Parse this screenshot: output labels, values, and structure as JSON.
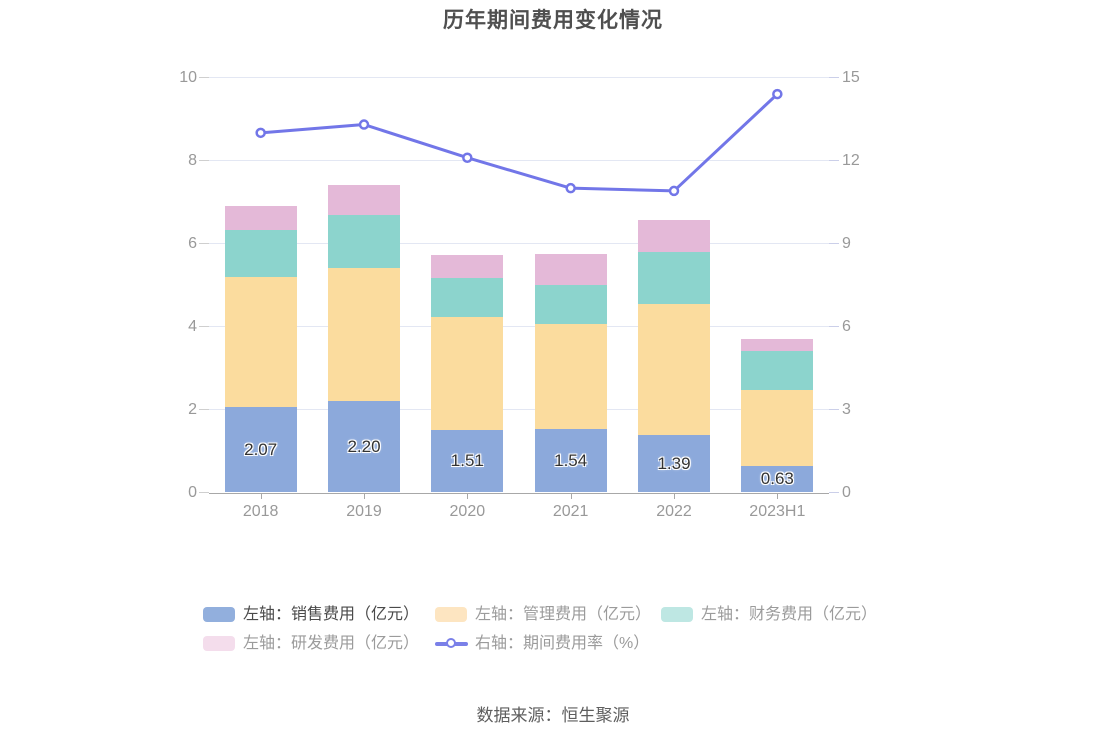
{
  "title": "历年期间费用变化情况",
  "source": "数据来源：恒生聚源",
  "chart_data": {
    "type": "bar+line",
    "title": "历年期间费用变化情况",
    "categories": [
      "2018",
      "2019",
      "2020",
      "2021",
      "2022",
      "2023H1"
    ],
    "bar_series": [
      {
        "key": "sales",
        "name": "左轴：销售费用（亿元）",
        "color": "#8ca9db",
        "legend_color": "#92afdd",
        "values": [
          2.07,
          2.2,
          1.51,
          1.54,
          1.39,
          0.63
        ],
        "labels": [
          "2.07",
          "2.20",
          "1.51",
          "1.54",
          "1.39",
          "0.63"
        ]
      },
      {
        "key": "admin",
        "name": "左轴：管理费用（亿元）",
        "color": "#fbdc9e",
        "legend_color": "#fde5c1",
        "values": [
          3.13,
          3.22,
          2.72,
          2.52,
          3.15,
          1.85
        ]
      },
      {
        "key": "finance",
        "name": "左轴：财务费用（亿元）",
        "color": "#8cd4cd",
        "legend_color": "#bee7e3",
        "values": [
          1.12,
          1.27,
          0.93,
          0.95,
          1.25,
          0.94
        ]
      },
      {
        "key": "rd",
        "name": "左轴：研发费用（亿元）",
        "color": "#e4b9d8",
        "legend_color": "#f4ddec",
        "values": [
          0.58,
          0.72,
          0.57,
          0.73,
          0.77,
          0.29
        ]
      }
    ],
    "line_series": {
      "key": "rate",
      "name": "右轴：期间费用率（%）",
      "color": "#7276e8",
      "values": [
        13.0,
        13.3,
        12.1,
        11.0,
        10.9,
        14.4
      ]
    },
    "left_axis": {
      "ticks": [
        0,
        2,
        4,
        6,
        8,
        10
      ],
      "max": 10
    },
    "right_axis": {
      "ticks": [
        0,
        3,
        6,
        9,
        12,
        15
      ],
      "max": 15
    },
    "legend_position": "bottom",
    "grid": true
  }
}
